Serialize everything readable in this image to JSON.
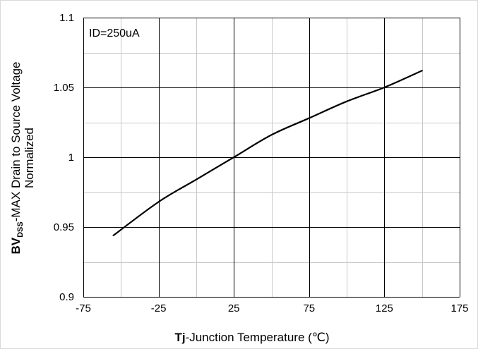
{
  "chart_data": {
    "type": "line",
    "annotation": "ID=250uA",
    "xlabel": {
      "bold": "Tj",
      "rest": "-Junction  Temperature  (℃)"
    },
    "ylabel": {
      "line1_bold": "BV",
      "line1_sub": "DSS",
      "line1_rest": "-MAX Drain to Source Voltage",
      "line2": "Normalized"
    },
    "xlim": [
      -75,
      175
    ],
    "ylim": [
      0.9,
      1.1
    ],
    "x_ticks": [
      -75,
      -50,
      -25,
      0,
      25,
      50,
      75,
      100,
      125,
      150,
      175
    ],
    "x_tick_labels": [
      "-75",
      "-25",
      "25",
      "75",
      "125",
      "175"
    ],
    "x_tick_label_values": [
      -75,
      -25,
      25,
      75,
      125,
      175
    ],
    "y_ticks": [
      0.9,
      0.925,
      0.95,
      0.975,
      1.0,
      1.025,
      1.05,
      1.075,
      1.1
    ],
    "y_tick_labels": [
      "0.9",
      "0.95",
      "1",
      "1.05",
      "1.1"
    ],
    "y_tick_label_values": [
      0.9,
      0.95,
      1.0,
      1.05,
      1.1
    ],
    "grid": true,
    "series": [
      {
        "color": "#000000",
        "x": [
          -55,
          -25,
          0,
          25,
          50,
          75,
          100,
          125,
          150
        ],
        "y": [
          0.944,
          0.968,
          0.984,
          1.0,
          1.016,
          1.028,
          1.04,
          1.05,
          1.062
        ]
      }
    ],
    "colors": {
      "grid_major": "#000000",
      "grid_minor": "#c8c8c8",
      "line": "#000000"
    }
  }
}
